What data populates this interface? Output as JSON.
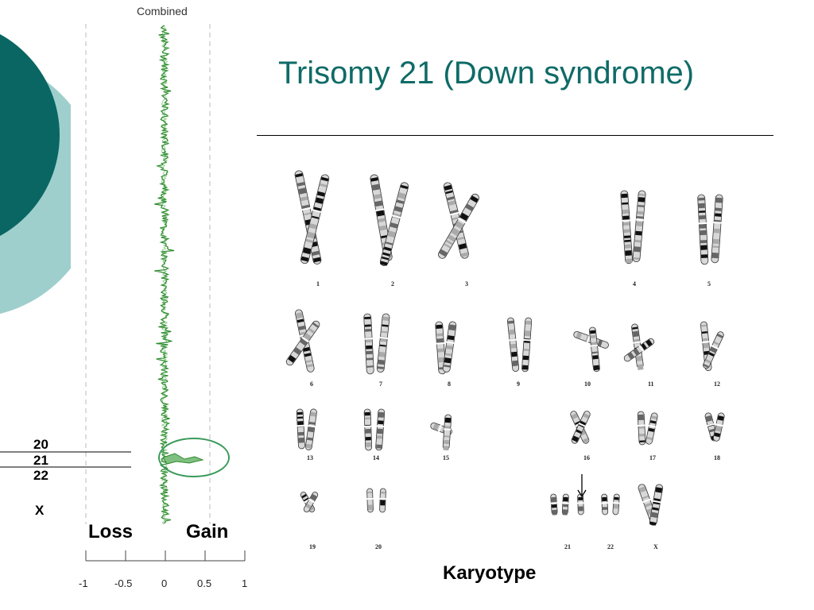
{
  "slide": {
    "title": "Trisomy 21 (Down syndrome)",
    "caption": "Karyotype"
  },
  "plot": {
    "title": "Combined",
    "loss_label": "Loss",
    "gain_label": "Gain",
    "x_ticks": [
      "-1",
      "-0.5",
      "0",
      "0.5",
      "1"
    ],
    "chromosome_labels": [
      "20",
      "21",
      "22",
      "X"
    ],
    "trace_color": "#2e8b2e",
    "highlight_color": "#3a9a5a"
  },
  "karyotype": {
    "labels": [
      "1",
      "2",
      "3",
      "4",
      "5",
      "6",
      "7",
      "8",
      "9",
      "10",
      "11",
      "12",
      "13",
      "14",
      "15",
      "16",
      "17",
      "18",
      "19",
      "20",
      "21",
      "22",
      "X"
    ]
  },
  "theme": {
    "dark_teal": "#0a6662",
    "light_teal": "#9fcfcd",
    "title_color": "#0f6b67"
  }
}
